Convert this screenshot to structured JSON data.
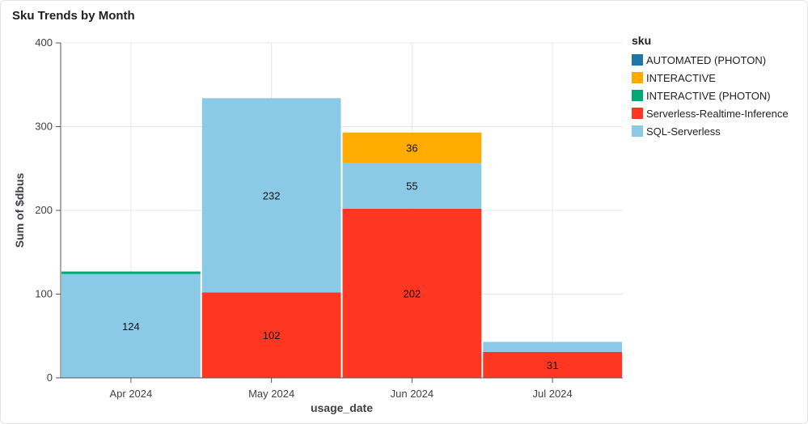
{
  "page": {
    "title": "Sku Trends by Month"
  },
  "chart_data": {
    "type": "bar",
    "stacked": true,
    "title": "Sku Trends by Month",
    "xlabel": "usage_date",
    "ylabel": "Sum of $dbus",
    "ylim": [
      0,
      400
    ],
    "yticks": [
      0,
      100,
      200,
      300,
      400
    ],
    "grid": true,
    "legend": {
      "title": "sku",
      "position": "right"
    },
    "categories": [
      "Apr 2024",
      "May 2024",
      "Jun 2024",
      "Jul 2024"
    ],
    "series": [
      {
        "name": "AUTOMATED (PHOTON)",
        "color": "#1f77a8",
        "values": [
          0,
          0,
          0,
          0
        ]
      },
      {
        "name": "INTERACTIVE",
        "color": "#ffab00",
        "values": [
          0,
          0,
          36,
          0
        ]
      },
      {
        "name": "INTERACTIVE (PHOTON)",
        "color": "#00a972",
        "values": [
          3,
          0,
          0,
          0
        ]
      },
      {
        "name": "Serverless-Realtime-Inference",
        "color": "#ff3621",
        "values": [
          0,
          102,
          202,
          31
        ]
      },
      {
        "name": "SQL-Serverless",
        "color": "#8bcae7",
        "values": [
          124,
          232,
          55,
          12
        ]
      }
    ],
    "stack_order": [
      "Serverless-Realtime-Inference",
      "SQL-Serverless",
      "INTERACTIVE (PHOTON)",
      "INTERACTIVE",
      "AUTOMATED (PHOTON)"
    ],
    "data_labels": [
      {
        "category": "Apr 2024",
        "series": "SQL-Serverless",
        "text": "124"
      },
      {
        "category": "May 2024",
        "series": "Serverless-Realtime-Inference",
        "text": "102"
      },
      {
        "category": "May 2024",
        "series": "SQL-Serverless",
        "text": "232"
      },
      {
        "category": "Jun 2024",
        "series": "Serverless-Realtime-Inference",
        "text": "202"
      },
      {
        "category": "Jun 2024",
        "series": "SQL-Serverless",
        "text": "55"
      },
      {
        "category": "Jun 2024",
        "series": "INTERACTIVE",
        "text": "36"
      },
      {
        "category": "Jul 2024",
        "series": "Serverless-Realtime-Inference",
        "text": "31"
      }
    ]
  }
}
